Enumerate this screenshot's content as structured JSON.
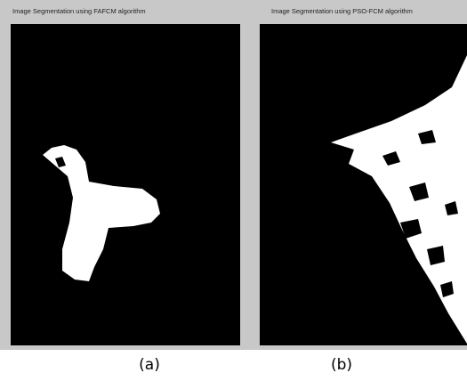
{
  "panels": [
    {
      "title": "Image Segmentation using FAFCM algorithm",
      "caption": "(a)"
    },
    {
      "title": "Image Segmentation using PSO-FCM algorithm",
      "caption": "(b)"
    }
  ]
}
